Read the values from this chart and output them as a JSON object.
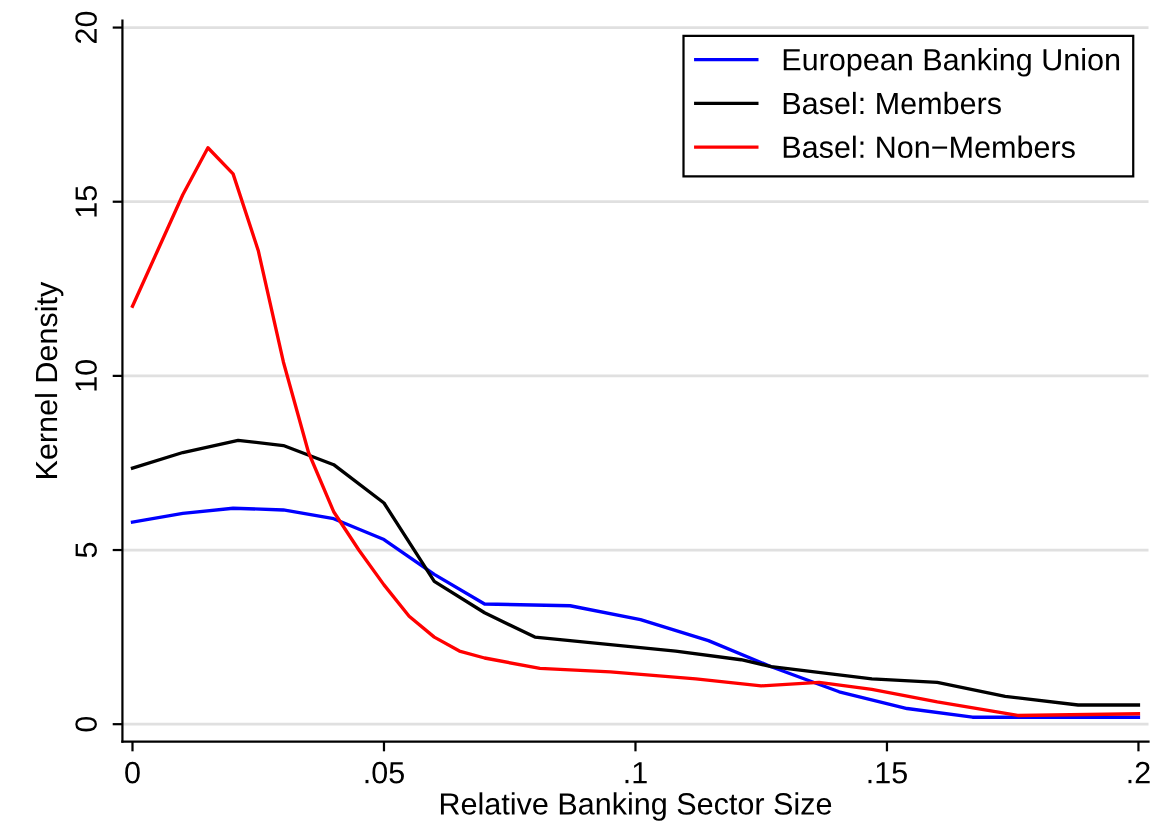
{
  "chart_data": {
    "type": "line",
    "xlabel": "Relative Banking Sector Size",
    "ylabel": "Kernel Density",
    "xlim": [
      -0.002,
      0.202
    ],
    "ylim": [
      -0.5,
      20.2
    ],
    "xticks": [
      0,
      {
        "value": 0.05,
        "label": ".05"
      },
      {
        "value": 0.1,
        "label": ".1"
      },
      {
        "value": 0.15,
        "label": ".15"
      },
      {
        "value": 0.2,
        "label": ".2"
      }
    ],
    "yticks": [
      0,
      5,
      10,
      15,
      20
    ],
    "grid": "y",
    "legend": "top right",
    "series": [
      {
        "name": "European Banking Union",
        "color": "#0000ff",
        "x": [
          0,
          0.01,
          0.02,
          0.03,
          0.04,
          0.05,
          0.06,
          0.07,
          0.087,
          0.101,
          0.1145,
          0.127,
          0.1405,
          0.154,
          0.167,
          0.18,
          0.2
        ],
        "values": [
          5.8,
          6.05,
          6.2,
          6.15,
          5.9,
          5.3,
          4.3,
          3.45,
          3.4,
          3.0,
          2.4,
          1.65,
          0.93,
          0.45,
          0.2,
          0.2,
          0.2
        ]
      },
      {
        "name": "Basel: Members",
        "color": "#000000",
        "x": [
          0,
          0.01,
          0.021,
          0.03,
          0.04,
          0.05,
          0.06,
          0.07,
          0.08,
          0.087,
          0.108,
          0.121,
          0.127,
          0.147,
          0.16,
          0.1735,
          0.188,
          0.2
        ],
        "values": [
          7.35,
          7.8,
          8.15,
          8.0,
          7.45,
          6.35,
          4.1,
          3.2,
          2.5,
          2.4,
          2.1,
          1.85,
          1.65,
          1.3,
          1.2,
          0.8,
          0.55,
          0.55
        ]
      },
      {
        "name": "Basel: Non−Members",
        "color": "#ff0000",
        "x": [
          0,
          0.005,
          0.01,
          0.015,
          0.02,
          0.025,
          0.03,
          0.035,
          0.04,
          0.045,
          0.05,
          0.055,
          0.06,
          0.065,
          0.07,
          0.081,
          0.095,
          0.112,
          0.125,
          0.1365,
          0.147,
          0.16,
          0.176,
          0.2
        ],
        "values": [
          12.0,
          13.6,
          15.2,
          16.55,
          15.8,
          13.6,
          10.4,
          7.8,
          6.1,
          5.0,
          4.0,
          3.1,
          2.5,
          2.1,
          1.9,
          1.6,
          1.5,
          1.3,
          1.1,
          1.2,
          1.0,
          0.64,
          0.25,
          0.3
        ]
      }
    ]
  }
}
